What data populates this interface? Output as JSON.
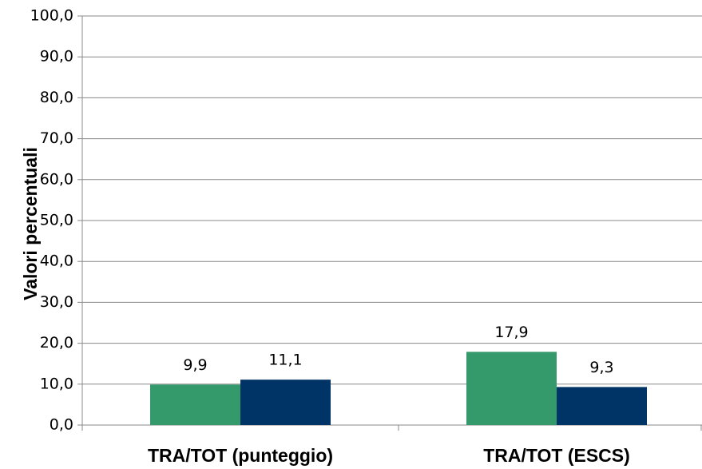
{
  "chart_data": {
    "type": "bar",
    "y_label": "Valori percentuali",
    "categories": [
      "TRA/TOT (punteggio)",
      "TRA/TOT (ESCS)"
    ],
    "series": [
      {
        "color": "#359a6b",
        "values": [
          9.9,
          17.9
        ],
        "value_labels": [
          "9,9",
          "17,9"
        ]
      },
      {
        "color": "#003366",
        "values": [
          11.1,
          9.3
        ],
        "value_labels": [
          "11,1",
          "9,3"
        ]
      }
    ],
    "ylim": [
      0,
      100
    ],
    "yticks": [
      {
        "value": 0,
        "label": "0,0"
      },
      {
        "value": 10,
        "label": "10,0"
      },
      {
        "value": 20,
        "label": "20,0"
      },
      {
        "value": 30,
        "label": "30,0"
      },
      {
        "value": 40,
        "label": "40,0"
      },
      {
        "value": 50,
        "label": "50,0"
      },
      {
        "value": 60,
        "label": "60,0"
      },
      {
        "value": 70,
        "label": "70,0"
      },
      {
        "value": 80,
        "label": "80,0"
      },
      {
        "value": 90,
        "label": "90,0"
      },
      {
        "value": 100,
        "label": "100,0"
      }
    ],
    "grid": true
  }
}
